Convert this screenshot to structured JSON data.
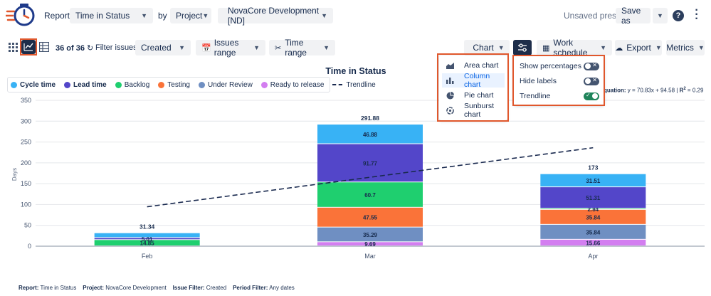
{
  "header": {
    "report_label": "Report:",
    "report_value": "Time in Status",
    "by_label": "by",
    "group_value": "Project",
    "project_value": "NovaCore Development [ND]",
    "unsaved": "Unsaved preset",
    "save_as": "Save as",
    "help_icon": "help-icon",
    "more_icon": "more-icon"
  },
  "toolbar": {
    "count": "36 of 36",
    "filter_label": "Filter issues:",
    "filter_value": "Created",
    "issues_range": "Issues range",
    "time_range": "Time range",
    "chart": "Chart",
    "work_schedule": "Work schedule",
    "export": "Export",
    "metrics": "Metrics"
  },
  "chart_menu": {
    "items": [
      {
        "label": "Area chart",
        "icon": "area-chart-icon"
      },
      {
        "label": "Column chart",
        "icon": "column-chart-icon"
      },
      {
        "label": "Pie chart",
        "icon": "pie-chart-icon"
      },
      {
        "label": "Sunburst chart",
        "icon": "sunburst-chart-icon"
      }
    ],
    "active": "Column chart"
  },
  "settings_panel": {
    "items": [
      {
        "label": "Show percentages",
        "on": false
      },
      {
        "label": "Hide labels",
        "on": false
      },
      {
        "label": "Trendline",
        "on": true
      }
    ]
  },
  "equation": {
    "label": "quation:",
    "formula": "y = 70.83x + 94.58 | ",
    "r2_label": "R",
    "r2_sup": "2",
    "r2_value": " = 0.29"
  },
  "colors": {
    "cycle_time": "#38b2f5",
    "lead_time": "#5346c9",
    "backlog": "#1fcf6f",
    "testing": "#fa7339",
    "under_review": "#6f8fc2",
    "ready_to_release": "#d37ef0",
    "trendline": "#1a2a4f",
    "highlight": "#e0572c"
  },
  "chart_data": {
    "type": "bar",
    "stacked": true,
    "title": "Time in Status",
    "ylabel": "Days",
    "xlabel": "",
    "ylim": [
      0,
      350
    ],
    "yticks": [
      0,
      50,
      100,
      150,
      200,
      250,
      300,
      350
    ],
    "categories": [
      "Feb",
      "Mar",
      "Apr"
    ],
    "totals": [
      "31.34",
      "291.88",
      "173"
    ],
    "series": [
      {
        "name": "Ready to release",
        "key": "ready_to_release",
        "values": [
          0,
          9.69,
          15.66
        ],
        "labels": [
          "",
          "9.69",
          "15.66"
        ]
      },
      {
        "name": "Under Review",
        "key": "under_review",
        "values": [
          0,
          35.29,
          35.84
        ],
        "labels": [
          "",
          "35.29",
          "35.84"
        ]
      },
      {
        "name": "Testing",
        "key": "testing",
        "values": [
          0,
          47.55,
          35.84
        ],
        "labels": [
          "",
          "47.55",
          "35.84"
        ]
      },
      {
        "name": "Backlog",
        "key": "backlog",
        "values": [
          14.85,
          60.7,
          2.84
        ],
        "labels": [
          "14.85",
          "60.7",
          "2.84"
        ]
      },
      {
        "name": "Lead time",
        "key": "lead_time",
        "values": [
          5.01,
          91.77,
          51.31
        ],
        "labels": [
          "5.01",
          "91.77",
          "51.31"
        ]
      },
      {
        "name": "Cycle time",
        "key": "cycle_time",
        "values": [
          11.48,
          46.88,
          31.51
        ],
        "labels": [
          "",
          "46.88",
          "31.51"
        ]
      }
    ],
    "legend": [
      {
        "name": "Cycle time",
        "key": "cycle_time",
        "bold": true
      },
      {
        "name": "Lead time",
        "key": "lead_time",
        "bold": true
      },
      {
        "name": "Backlog",
        "key": "backlog"
      },
      {
        "name": "Testing",
        "key": "testing"
      },
      {
        "name": "Under Review",
        "key": "under_review"
      },
      {
        "name": "Ready to release",
        "key": "ready_to_release"
      },
      {
        "name": "Trendline",
        "key": "trendline",
        "dashed": true
      }
    ],
    "trendline": {
      "start": 94.58,
      "end": 236.24
    },
    "legend_placement": "top-left",
    "grid": true
  },
  "footer": {
    "report_label": "Report:",
    "report_value": "Time in Status",
    "project_label": "Project:",
    "project_value": "NovaCore Development",
    "issue_filter_label": "Issue Filter:",
    "issue_filter_value": "Created",
    "period_filter_label": "Period Filter:",
    "period_filter_value": "Any dates"
  }
}
